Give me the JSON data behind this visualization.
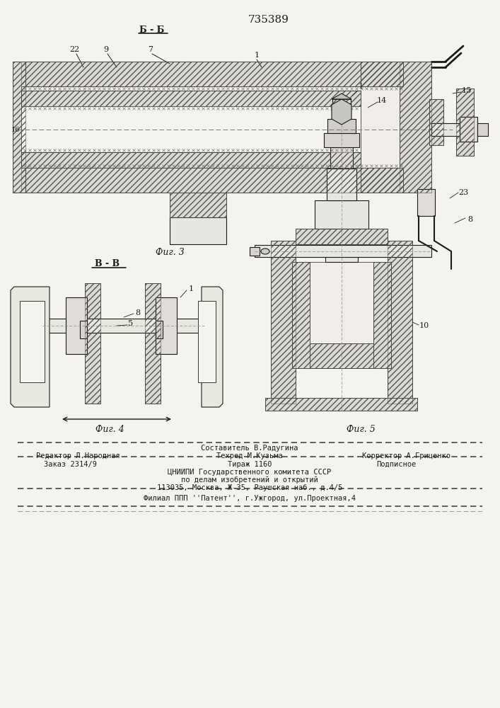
{
  "patent_number": "735389",
  "bg": "#f5f3ef",
  "lc": "#1a1a1a",
  "fig3_label": "Фиг. 3",
  "fig4_label": "Фиг. 4",
  "fig5_label": "Фиг. 5",
  "section_bb": "Б - Б",
  "section_vv": "В - В",
  "footer_line0": "Составитель В.Радугина",
  "footer_col1a": "Редактор Л.Народная",
  "footer_col2a": "Техред М.Кузьма",
  "footer_col3a": "Корректор А.Гриценко",
  "footer_col1b": "Заказ 2314/9",
  "footer_col2b": "Тираж 1160",
  "footer_col3b": "Подписное",
  "footer_line3": "ЦНИИПИ Государственного комитета СССР",
  "footer_line4": "по делам изобретений и открытий",
  "footer_line5": "113035, Москва, Ж-35, Раушская наб., д.4/5",
  "footer_line6": "Филиал ППП ''Патент'', г.Ужгород, ул.Проектная,4"
}
